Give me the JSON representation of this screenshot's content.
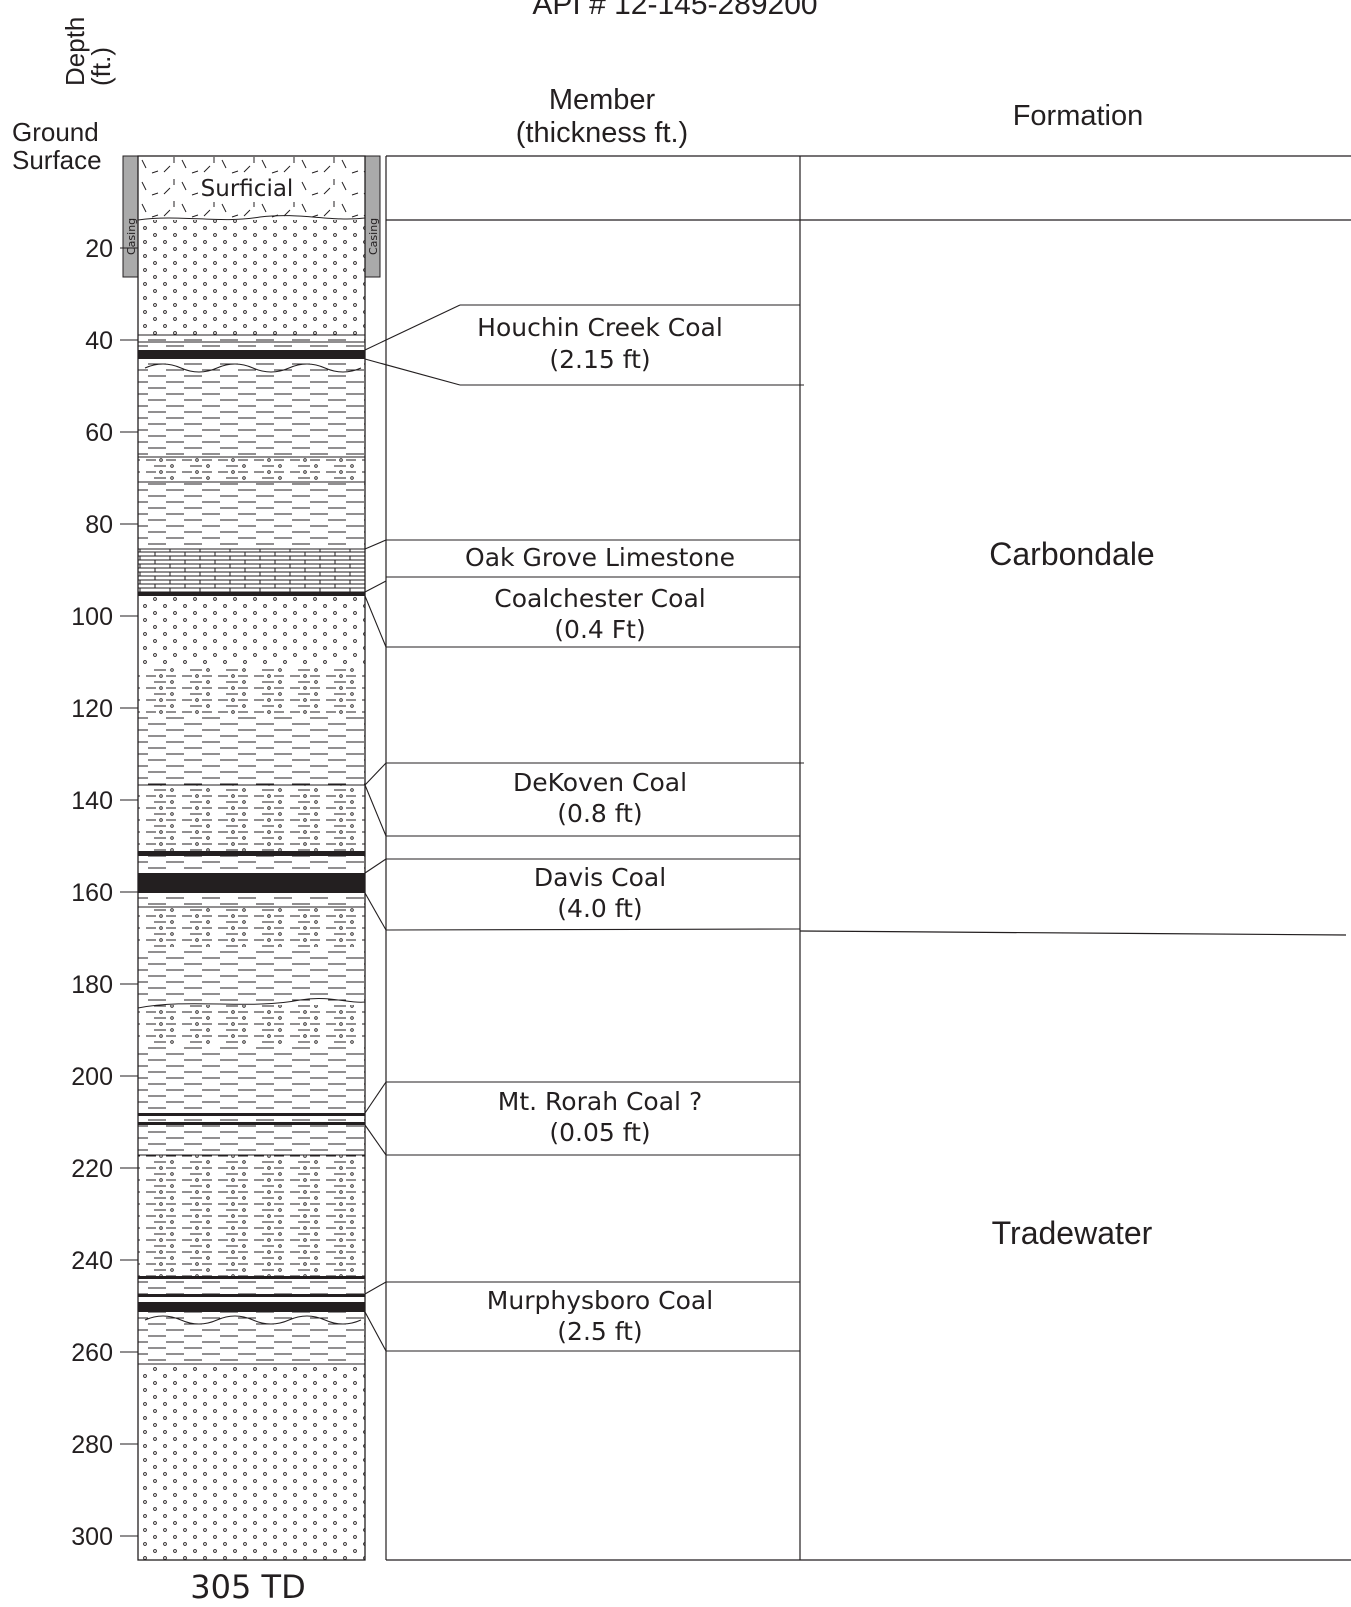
{
  "title_partial": "API # 12-145-289200",
  "axis": {
    "title_line1": "Depth",
    "title_line2": "(ft.)",
    "ground_surface_line1": "Ground",
    "ground_surface_line2": "Surface",
    "ticks": [
      20,
      40,
      60,
      80,
      100,
      120,
      140,
      160,
      180,
      200,
      220,
      240,
      260,
      280,
      300
    ],
    "total_depth_label": "305 TD"
  },
  "casing_label": "Casing",
  "surficial_label": "Surficial",
  "headers": {
    "member_line1": "Member",
    "member_line2": "(thickness ft.)",
    "formation": "Formation"
  },
  "members": [
    {
      "name": "Houchin Creek Coal",
      "thickness": "(2.15 ft)"
    },
    {
      "name": "Oak Grove Limestone"
    },
    {
      "name": "Coalchester Coal",
      "thickness": "(0.4 Ft)"
    },
    {
      "name": "DeKoven Coal",
      "thickness": "(0.8 ft)"
    },
    {
      "name": "Davis Coal",
      "thickness": "(4.0 ft)"
    },
    {
      "name": "Mt. Rorah Coal ?",
      "thickness": "(0.05 ft)"
    },
    {
      "name": "Murphysboro Coal",
      "thickness": "(2.5 ft)"
    }
  ],
  "formations": [
    {
      "name": "Carbondale"
    },
    {
      "name": "Tradewater"
    }
  ],
  "colors": {
    "ink": "#231f20",
    "casing": "#aaaaaa",
    "coal": "#231f20"
  }
}
